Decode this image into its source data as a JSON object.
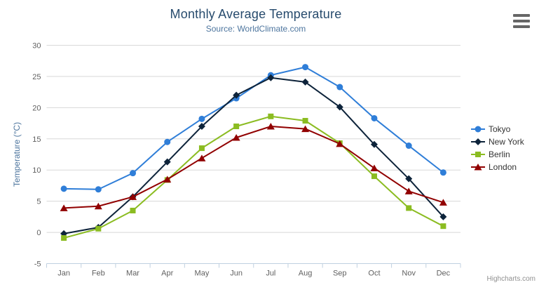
{
  "credits": "Highcharts.com",
  "colors": {
    "title": "#274b6d",
    "subtitle": "#4d759e",
    "axis_label": "#606060",
    "grid_line": "#d8d8d8",
    "axis_line": "#c0d0e0",
    "legend_text": "#333333",
    "credits_text": "#909090"
  },
  "chart_data": {
    "type": "line",
    "title": "Monthly Average Temperature",
    "subtitle": "Source: WorldClimate.com",
    "xlabel": "",
    "ylabel": "Temperature (°C)",
    "ylim": [
      -5,
      30
    ],
    "ytick_interval": 5,
    "grid": true,
    "legend_position": "right",
    "categories": [
      "Jan",
      "Feb",
      "Mar",
      "Apr",
      "May",
      "Jun",
      "Jul",
      "Aug",
      "Sep",
      "Oct",
      "Nov",
      "Dec"
    ],
    "series": [
      {
        "name": "Tokyo",
        "color": "#2f7ed8",
        "marker": "circle",
        "values": [
          7.0,
          6.9,
          9.5,
          14.5,
          18.2,
          21.5,
          25.2,
          26.5,
          23.3,
          18.3,
          13.9,
          9.6
        ]
      },
      {
        "name": "New York",
        "color": "#0d233a",
        "marker": "diamond",
        "values": [
          -0.2,
          0.8,
          5.7,
          11.3,
          17.0,
          22.0,
          24.8,
          24.1,
          20.1,
          14.1,
          8.6,
          2.5
        ]
      },
      {
        "name": "Berlin",
        "color": "#8bbc21",
        "marker": "square",
        "values": [
          -0.9,
          0.6,
          3.5,
          8.4,
          13.5,
          17.0,
          18.6,
          17.9,
          14.3,
          9.0,
          3.9,
          1.0
        ]
      },
      {
        "name": "London",
        "color": "#910000",
        "marker": "triangle",
        "values": [
          3.9,
          4.2,
          5.7,
          8.5,
          11.9,
          15.2,
          17.0,
          16.6,
          14.2,
          10.3,
          6.6,
          4.8
        ]
      }
    ]
  }
}
